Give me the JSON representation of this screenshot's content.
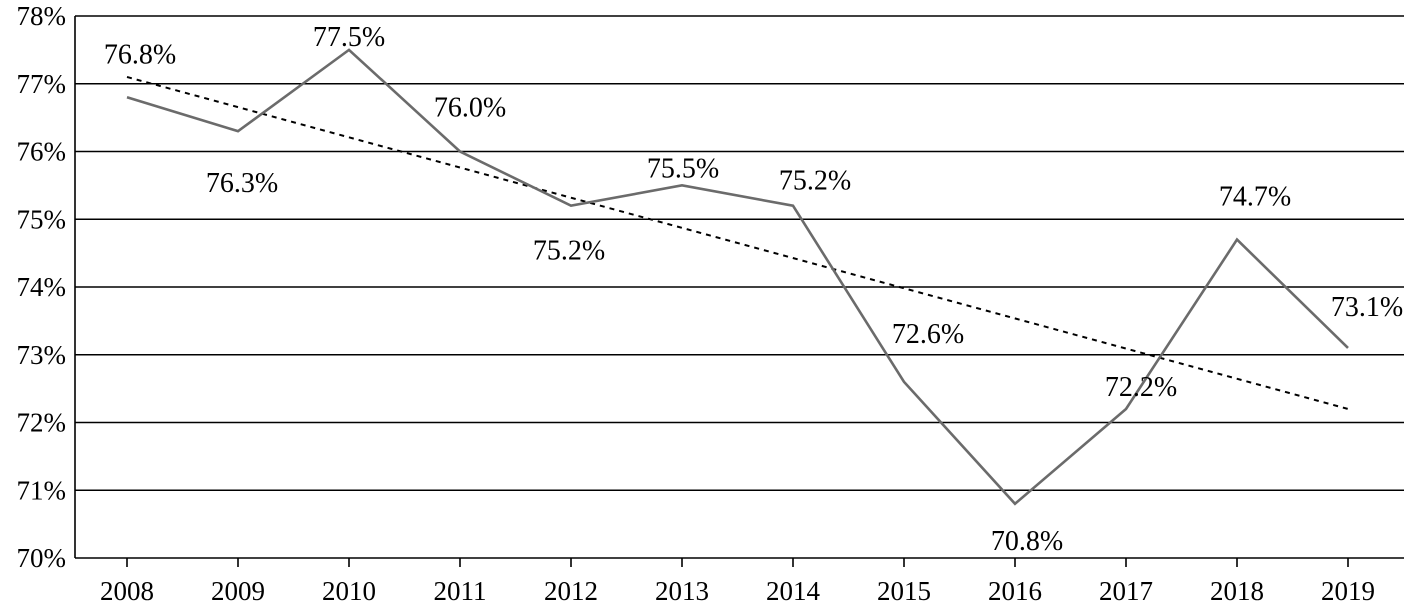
{
  "chart_data": {
    "type": "line",
    "title": "",
    "xlabel": "",
    "ylabel": "",
    "categories": [
      "2008",
      "2009",
      "2010",
      "2011",
      "2012",
      "2013",
      "2014",
      "2015",
      "2016",
      "2017",
      "2018",
      "2019"
    ],
    "series": [
      {
        "values": [
          76.8,
          76.3,
          77.5,
          76.0,
          75.2,
          75.5,
          75.2,
          72.6,
          70.8,
          72.2,
          74.7,
          73.1
        ],
        "labels": [
          "76.8%",
          "76.3%",
          "77.5%",
          "76.0%",
          "75.2%",
          "75.5%",
          "75.2%",
          "72.6%",
          "70.8%",
          "72.2%",
          "74.7%",
          "73.1%"
        ],
        "color": "#6b6b6b",
        "style": "solid"
      }
    ],
    "trendline": {
      "style": "dotted",
      "color": "#000000",
      "start_value": 77.1,
      "end_value": 72.2
    },
    "ylim": [
      70,
      78
    ],
    "yticks": [
      70,
      71,
      72,
      73,
      74,
      75,
      76,
      77,
      78
    ],
    "ytick_labels": [
      "70%",
      "71%",
      "72%",
      "73%",
      "74%",
      "75%",
      "76%",
      "77%",
      "78%"
    ],
    "grid": true,
    "legend": "none"
  }
}
